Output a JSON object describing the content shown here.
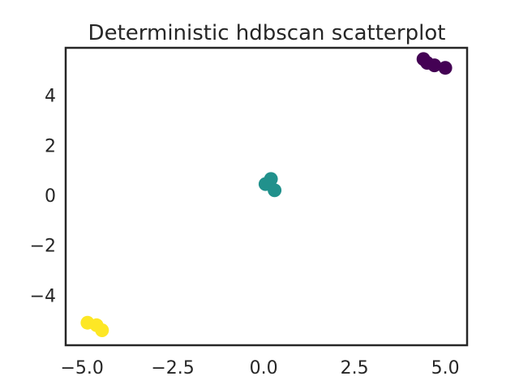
{
  "chart_data": {
    "type": "scatter",
    "title": "Deterministic hdbscan scatterplot",
    "xlabel": "",
    "ylabel": "",
    "xlim": [
      -5.45,
      5.6
    ],
    "ylim": [
      -6.0,
      5.9
    ],
    "xticks": [
      -5.0,
      -2.5,
      0.0,
      2.5,
      5.0
    ],
    "xtick_labels": [
      "−5.0",
      "−2.5",
      "0.0",
      "2.5",
      "5.0"
    ],
    "yticks": [
      -4,
      -2,
      0,
      2,
      4
    ],
    "ytick_labels": [
      "−4",
      "−2",
      "0",
      "2",
      "4"
    ],
    "grid": false,
    "legend": "none",
    "series": [
      {
        "color": "#440154",
        "points": [
          [
            4.4,
            5.45
          ],
          [
            4.5,
            5.3
          ],
          [
            4.7,
            5.2
          ],
          [
            5.0,
            5.1
          ]
        ]
      },
      {
        "color": "#21918c",
        "points": [
          [
            0.2,
            0.65
          ],
          [
            0.05,
            0.45
          ],
          [
            0.3,
            0.2
          ]
        ]
      },
      {
        "color": "#fde725",
        "points": [
          [
            -4.85,
            -5.1
          ],
          [
            -4.6,
            -5.2
          ],
          [
            -4.45,
            -5.4
          ]
        ]
      }
    ]
  }
}
